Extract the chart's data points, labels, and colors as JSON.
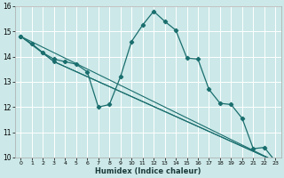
{
  "xlabel": "Humidex (Indice chaleur)",
  "bg_color": "#cce8e8",
  "grid_color": "#ffffff",
  "line_color": "#1a6e6e",
  "xlim": [
    -0.5,
    23.5
  ],
  "ylim": [
    10,
    16
  ],
  "xticks": [
    0,
    1,
    2,
    3,
    4,
    5,
    6,
    7,
    8,
    9,
    10,
    11,
    12,
    13,
    14,
    15,
    16,
    17,
    18,
    19,
    20,
    21,
    22,
    23
  ],
  "yticks": [
    10,
    11,
    12,
    13,
    14,
    15,
    16
  ],
  "series": [
    {
      "x": [
        0,
        1,
        2,
        3,
        4,
        5,
        6,
        7,
        8,
        9,
        10,
        11,
        12,
        13,
        14,
        15,
        16,
        17,
        18,
        19,
        20,
        21,
        22,
        23
      ],
      "y": [
        14.8,
        14.5,
        14.15,
        13.9,
        13.8,
        13.7,
        13.4,
        12.0,
        12.1,
        13.2,
        14.6,
        15.25,
        15.8,
        15.4,
        15.05,
        13.95,
        13.9,
        12.7,
        12.15,
        12.1,
        11.55,
        10.35,
        10.4,
        9.85
      ]
    },
    {
      "x": [
        0,
        1,
        2,
        3,
        23
      ],
      "y": [
        14.8,
        14.5,
        14.15,
        13.8,
        9.85
      ]
    },
    {
      "x": [
        0,
        3,
        23
      ],
      "y": [
        14.8,
        13.8,
        9.85
      ]
    },
    {
      "x": [
        0,
        23
      ],
      "y": [
        14.8,
        9.85
      ]
    }
  ]
}
